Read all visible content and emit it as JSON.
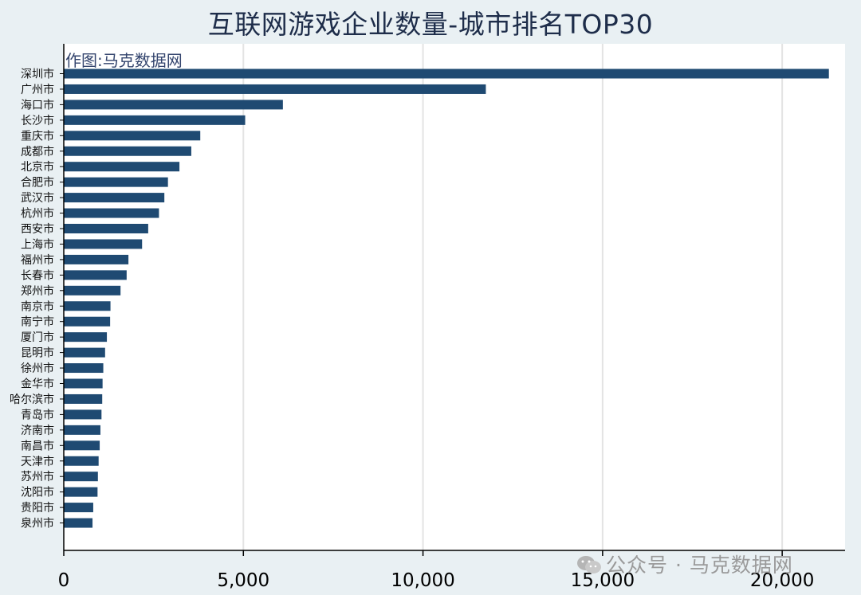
{
  "chart_data": {
    "type": "bar",
    "orientation": "horizontal",
    "title": "互联网游戏企业数量-城市排名TOP30",
    "credit": "作图:马克数据网",
    "watermark": "公众号 · 马克数据网",
    "categories": [
      "深圳市",
      "广州市",
      "海口市",
      "长沙市",
      "重庆市",
      "成都市",
      "北京市",
      "合肥市",
      "武汉市",
      "杭州市",
      "西安市",
      "上海市",
      "福州市",
      "长春市",
      "郑州市",
      "南京市",
      "南宁市",
      "厦门市",
      "昆明市",
      "徐州市",
      "金华市",
      "哈尔滨市",
      "青岛市",
      "济南市",
      "南昌市",
      "天津市",
      "苏州市",
      "沈阳市",
      "贵阳市",
      "泉州市"
    ],
    "values": [
      21300,
      11750,
      6100,
      5050,
      3800,
      3550,
      3220,
      2900,
      2800,
      2650,
      2350,
      2180,
      1800,
      1750,
      1580,
      1300,
      1290,
      1200,
      1150,
      1100,
      1080,
      1070,
      1050,
      1020,
      1000,
      970,
      950,
      940,
      820,
      800
    ],
    "xticks": [
      0,
      5000,
      10000,
      15000,
      20000
    ],
    "xtick_labels": [
      "0",
      "5,000",
      "10,000",
      "15,000",
      "20,000"
    ],
    "xlim": [
      0,
      21750
    ],
    "grid": "vertical",
    "bar_color": "#1f4a72",
    "background": "#e9f0f3",
    "plot_background": "#ffffff"
  }
}
